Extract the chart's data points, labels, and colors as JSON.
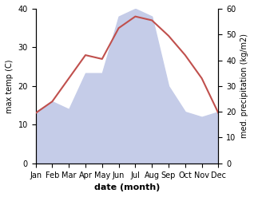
{
  "months": [
    "Jan",
    "Feb",
    "Mar",
    "Apr",
    "May",
    "Jun",
    "Jul",
    "Aug",
    "Sep",
    "Oct",
    "Nov",
    "Dec"
  ],
  "x": [
    1,
    2,
    3,
    4,
    5,
    6,
    7,
    8,
    9,
    10,
    11,
    12
  ],
  "temp": [
    13,
    16,
    22,
    28,
    27,
    35,
    38,
    37,
    33,
    28,
    22,
    13
  ],
  "precip": [
    20,
    24,
    21,
    35,
    35,
    57,
    60,
    57,
    30,
    20,
    18,
    20
  ],
  "temp_color": "#c0504d",
  "precip_fill_color": "#c5cce8",
  "ylabel_left": "max temp (C)",
  "ylabel_right": "med. precipitation (kg/m2)",
  "xlabel": "date (month)",
  "ylim_left": [
    0,
    40
  ],
  "ylim_right": [
    0,
    60
  ],
  "yticks_left": [
    0,
    10,
    20,
    30,
    40
  ],
  "yticks_right": [
    0,
    10,
    20,
    30,
    40,
    50,
    60
  ],
  "bg_color": "#ffffff",
  "plot_bg_color": "#ffffff",
  "temp_linewidth": 1.5,
  "xlabel_fontsize": 8,
  "ylabel_fontsize": 7,
  "tick_fontsize": 7
}
